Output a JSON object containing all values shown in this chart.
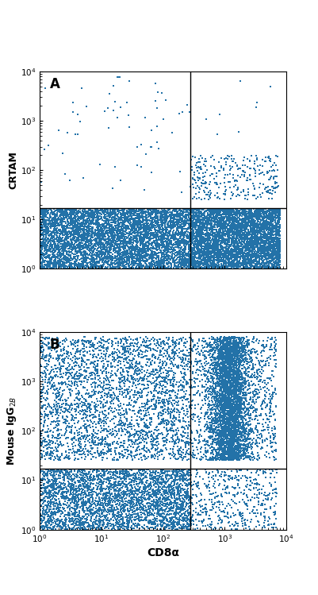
{
  "panel_A": {
    "label": "A",
    "ylabel": "CRTAM",
    "gate_x": 280,
    "gate_y": 17
  },
  "panel_B": {
    "label": "B",
    "ylabel": "Mouse IgG$_{2B}$",
    "gate_x": 280,
    "gate_y": 17
  },
  "xlabel": "CD8α",
  "xlim": [
    1,
    10000
  ],
  "ylim": [
    1,
    10000
  ],
  "background_color": "#ffffff",
  "dot_color": "#2372a8",
  "dot_size": 2.5,
  "dot_alpha": 1.0
}
